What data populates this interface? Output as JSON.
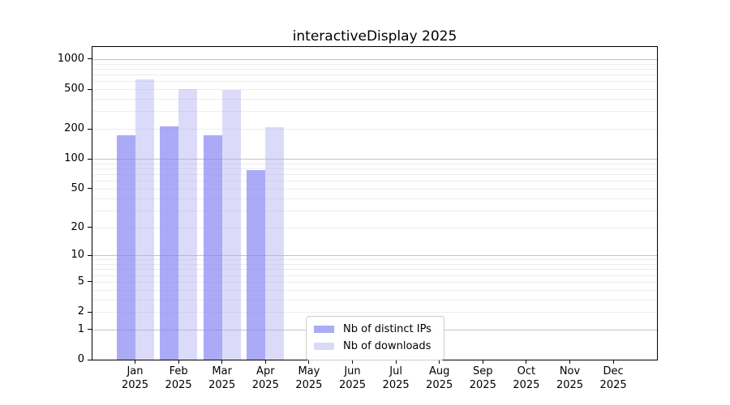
{
  "chart_data": {
    "type": "bar",
    "title": "interactiveDisplay 2025",
    "x_year_label": "2025",
    "categories": [
      "Jan",
      "Feb",
      "Mar",
      "Apr",
      "May",
      "Jun",
      "Jul",
      "Aug",
      "Sep",
      "Oct",
      "Nov",
      "Dec"
    ],
    "series": [
      {
        "name": "Nb of distinct IPs",
        "color": "#ababf6",
        "fill": "rgba(134,134,243,0.7)",
        "values": [
          172,
          213,
          172,
          77,
          0,
          0,
          0,
          0,
          0,
          0,
          0,
          0
        ]
      },
      {
        "name": "Nb of downloads",
        "color": "#d9d9f8",
        "fill": "rgba(176,176,242,0.45)",
        "values": [
          626,
          501,
          494,
          207,
          0,
          0,
          0,
          0,
          0,
          0,
          0,
          0
        ]
      }
    ],
    "y_scale": "log1p",
    "ylim": [
      0,
      1320
    ],
    "y_ticks": [
      0,
      1,
      2,
      5,
      10,
      20,
      50,
      100,
      200,
      500,
      1000
    ],
    "y_gridlines_major": [
      1,
      10,
      100,
      1000
    ],
    "y_gridlines_minor": [
      2,
      3,
      4,
      5,
      6,
      7,
      8,
      9,
      20,
      30,
      40,
      50,
      60,
      70,
      80,
      90,
      200,
      300,
      400,
      500,
      600,
      700,
      800,
      900
    ],
    "grid": true,
    "legend_position": "lower center",
    "colors": {
      "grid_major": "#c4c4c4",
      "grid_minor": "#ededed",
      "axis": "#000000",
      "text": "#000000"
    }
  }
}
